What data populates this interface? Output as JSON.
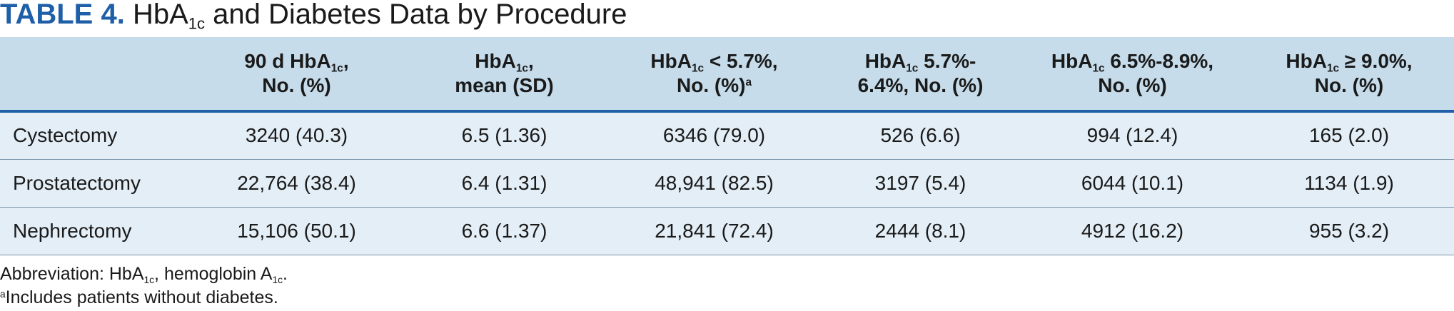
{
  "title": {
    "label": "TABLE 4.",
    "text_part1": "HbA",
    "text_sub": "1c",
    "text_part2": "and Diabetes Data by Procedure"
  },
  "table": {
    "headers": [
      {
        "l1a": "",
        "l1sub": "",
        "l1b": "",
        "l2a": "",
        "l2sup": ""
      },
      {
        "l1a": "90 d HbA",
        "l1sub": "1c",
        "l1b": ",",
        "l2a": "No. (%)",
        "l2sup": ""
      },
      {
        "l1a": "HbA",
        "l1sub": "1c",
        "l1b": ",",
        "l2a": "mean (SD)",
        "l2sup": ""
      },
      {
        "l1a": "HbA",
        "l1sub": "1c",
        "l1b": " < 5.7%,",
        "l2a": "No. (%)",
        "l2sup": "a"
      },
      {
        "l1a": "HbA",
        "l1sub": "1c",
        "l1b": " 5.7%-",
        "l2a": "6.4%, No. (%)",
        "l2sup": ""
      },
      {
        "l1a": "HbA",
        "l1sub": "1c",
        "l1b": " 6.5%-8.9%,",
        "l2a": "No. (%)",
        "l2sup": ""
      },
      {
        "l1a": "HbA",
        "l1sub": "1c",
        "l1b": " ≥ 9.0%,",
        "l2a": "No. (%)",
        "l2sup": ""
      }
    ],
    "rows": [
      [
        "Cystectomy",
        "3240 (40.3)",
        "6.5 (1.36)",
        "6346 (79.0)",
        "526 (6.6)",
        "994 (12.4)",
        "165 (2.0)"
      ],
      [
        "Prostatectomy",
        "22,764 (38.4)",
        "6.4 (1.31)",
        "48,941 (82.5)",
        "3197 (5.4)",
        "6044 (10.1)",
        "1134 (1.9)"
      ],
      [
        "Nephrectomy",
        "15,106 (50.1)",
        "6.6 (1.37)",
        "21,841 (72.4)",
        "2444 (8.1)",
        "4912 (16.2)",
        "955 (3.2)"
      ]
    ]
  },
  "footnotes": {
    "abbrev_a": "Abbreviation: HbA",
    "abbrev_sub1": "1c",
    "abbrev_b": ", hemoglobin A",
    "abbrev_sub2": "1c",
    "abbrev_c": ".",
    "note_sup": "a",
    "note_text": "Includes patients without diabetes."
  },
  "colors": {
    "accent": "#1f5fa8",
    "header_bg": "#c6dceb",
    "row_bg": "#e3eef6"
  }
}
